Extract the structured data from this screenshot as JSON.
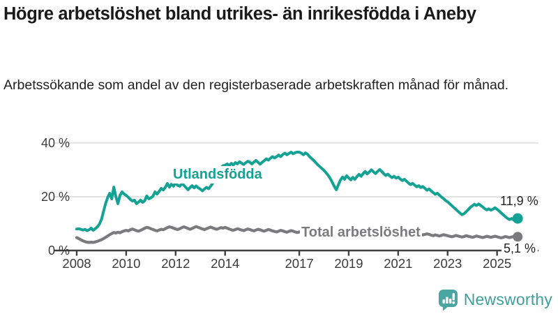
{
  "header": {
    "title": "Högre arbetslöshet bland utrikes- än inrikesfödda i Aneby",
    "subtitle": "Arbetssökande som andel av den registerbaserade arbetskraften månad för månad."
  },
  "chart_data": {
    "type": "line",
    "x_unit": "month",
    "x_range": [
      "2008-01",
      "2025-11"
    ],
    "grid": "horizontal",
    "ylim": [
      0,
      44
    ],
    "y_ticks": [
      {
        "label": "40 %",
        "value": 40
      },
      {
        "label": "20 %",
        "value": 20
      },
      {
        "label": "0 %",
        "value": 0
      }
    ],
    "x_ticks": [
      {
        "label": "2008",
        "year": 2008
      },
      {
        "label": "2010",
        "year": 2010
      },
      {
        "label": "2012",
        "year": 2012
      },
      {
        "label": "2014",
        "year": 2014
      },
      {
        "label": "2017",
        "year": 2017
      },
      {
        "label": "2019",
        "year": 2019
      },
      {
        "label": "2021",
        "year": 2021
      },
      {
        "label": "2023",
        "year": 2023
      },
      {
        "label": "2025",
        "year": 2025
      }
    ],
    "series": [
      {
        "name": "Utlandsfödda",
        "color": "#14a294",
        "end_label": "11,9 %",
        "end_value": 11.9,
        "values": [
          8.0,
          8.1,
          7.9,
          7.6,
          7.9,
          7.4,
          7.7,
          8.3,
          7.5,
          8.1,
          8.8,
          9.8,
          11.5,
          14.5,
          17.5,
          19.7,
          21.3,
          19.2,
          23.6,
          20.0,
          17.4,
          20.5,
          21.8,
          21.0,
          20.5,
          19.8,
          19.0,
          18.4,
          18.7,
          17.4,
          18.0,
          18.7,
          17.9,
          18.5,
          20.3,
          19.2,
          19.6,
          20.2,
          21.8,
          21.0,
          22.0,
          23.1,
          22.5,
          23.5,
          24.9,
          23.6,
          24.7,
          23.9,
          25.2,
          24.2,
          23.9,
          24.9,
          24.3,
          23.4,
          22.6,
          23.4,
          24.1,
          23.3,
          24.0,
          23.3,
          22.8,
          22.2,
          22.9,
          23.5,
          23.0,
          23.9,
          25.0,
          26.5,
          28.0,
          29.5,
          30.8,
          31.5,
          31.7,
          32.2,
          31.5,
          32.4,
          31.8,
          32.7,
          32.2,
          33.0,
          32.5,
          32.0,
          32.6,
          33.2,
          32.8,
          32.2,
          32.9,
          33.5,
          32.8,
          32.1,
          32.8,
          33.4,
          34.1,
          33.6,
          34.3,
          34.9,
          34.4,
          34.9,
          35.5,
          34.9,
          35.7,
          36.2,
          35.6,
          36.1,
          36.6,
          36.0,
          36.4,
          36.6,
          36.6,
          36.2,
          35.6,
          36.3,
          35.8,
          34.9,
          34.2,
          33.5,
          32.7,
          31.9,
          31.2,
          30.5,
          29.8,
          28.9,
          28.0,
          26.8,
          25.4,
          23.8,
          22.6,
          24.5,
          26.2,
          27.3,
          26.5,
          27.8,
          27.0,
          26.3,
          27.2,
          26.5,
          27.5,
          28.3,
          27.6,
          28.6,
          29.4,
          28.5,
          29.2,
          30.0,
          29.3,
          28.6,
          29.4,
          30.1,
          29.4,
          28.6,
          27.9,
          28.4,
          27.7,
          27.1,
          27.6,
          26.9,
          27.3,
          26.6,
          26.0,
          26.5,
          25.8,
          25.1,
          24.5,
          25.0,
          24.3,
          23.7,
          24.1,
          23.4,
          23.8,
          23.1,
          22.4,
          22.9,
          22.2,
          21.5,
          20.9,
          21.3,
          20.6,
          19.9,
          19.3,
          18.6,
          18.1,
          17.4,
          16.7,
          16.0,
          15.3,
          14.6,
          13.9,
          13.3,
          13.7,
          14.4,
          15.2,
          16.0,
          16.6,
          17.2,
          16.7,
          17.3,
          16.8,
          16.2,
          15.6,
          15.1,
          15.5,
          15.0,
          15.4,
          15.9,
          15.3,
          14.7,
          14.0,
          13.3,
          12.6,
          12.0,
          11.5,
          11.9,
          11.4,
          11.8,
          11.9
        ]
      },
      {
        "name": "Total arbetslöshet",
        "color": "#7b7b7d",
        "end_label": "5,1 %",
        "end_value": 5.1,
        "values": [
          4.8,
          4.4,
          4.0,
          3.6,
          3.3,
          3.1,
          3.0,
          3.1,
          3.0,
          3.2,
          3.4,
          3.7,
          4.0,
          4.4,
          4.9,
          5.4,
          5.9,
          6.3,
          6.7,
          6.5,
          6.8,
          6.6,
          7.0,
          7.3,
          7.5,
          7.3,
          7.7,
          8.0,
          7.7,
          7.4,
          7.2,
          7.5,
          7.9,
          8.3,
          8.6,
          8.4,
          8.1,
          7.8,
          7.5,
          7.3,
          7.6,
          7.9,
          7.7,
          8.1,
          8.5,
          8.8,
          8.6,
          8.3,
          8.0,
          7.8,
          8.1,
          8.5,
          8.8,
          8.5,
          8.2,
          7.9,
          8.2,
          8.6,
          8.9,
          8.6,
          8.3,
          8.0,
          7.8,
          8.1,
          8.4,
          8.7,
          8.4,
          8.1,
          7.9,
          8.2,
          8.5,
          8.3,
          8.6,
          8.3,
          8.0,
          7.7,
          7.5,
          7.8,
          8.1,
          7.9,
          7.6,
          7.4,
          7.7,
          8.0,
          7.8,
          7.5,
          7.3,
          7.6,
          7.9,
          7.7,
          7.4,
          7.2,
          7.5,
          7.8,
          7.6,
          7.3,
          7.1,
          6.9,
          7.2,
          7.5,
          7.3,
          7.0,
          6.8,
          7.1,
          7.4,
          7.2,
          6.9,
          6.7,
          6.9,
          7.1,
          6.8,
          6.6,
          6.9,
          7.1,
          6.8,
          6.5,
          6.7,
          7.0,
          6.8,
          6.5,
          6.3,
          6.5,
          6.8,
          6.6,
          6.3,
          6.1,
          6.4,
          6.6,
          6.4,
          6.1,
          6.3,
          6.6,
          6.4,
          6.2,
          6.5,
          6.7,
          6.5,
          6.2,
          6.0,
          6.3,
          6.5,
          6.3,
          6.1,
          6.4,
          6.6,
          6.9,
          7.2,
          7.5,
          7.3,
          7.6,
          7.4,
          7.1,
          6.9,
          7.2,
          7.0,
          6.8,
          7.0,
          7.2,
          6.9,
          6.7,
          6.5,
          6.8,
          6.6,
          6.3,
          6.1,
          6.4,
          6.2,
          6.0,
          5.8,
          6.0,
          6.2,
          6.0,
          5.7,
          5.5,
          5.8,
          5.6,
          5.4,
          5.6,
          5.9,
          5.7,
          5.5,
          5.3,
          5.1,
          5.3,
          5.6,
          5.4,
          5.2,
          5.0,
          5.2,
          5.5,
          5.3,
          5.1,
          4.9,
          5.1,
          5.4,
          5.2,
          5.0,
          4.8,
          5.0,
          5.3,
          5.1,
          4.9,
          5.1,
          5.3,
          5.1,
          4.9,
          4.7,
          4.9,
          5.2,
          5.0,
          4.8,
          5.0,
          5.2,
          5.0,
          5.1
        ]
      }
    ]
  },
  "footer": {
    "brand": "Newsworthy",
    "logo_icon": "speech-bubble-bar-chart-icon",
    "brand_color": "#3f9f9a",
    "logo_fill": "#4aa6a1"
  }
}
